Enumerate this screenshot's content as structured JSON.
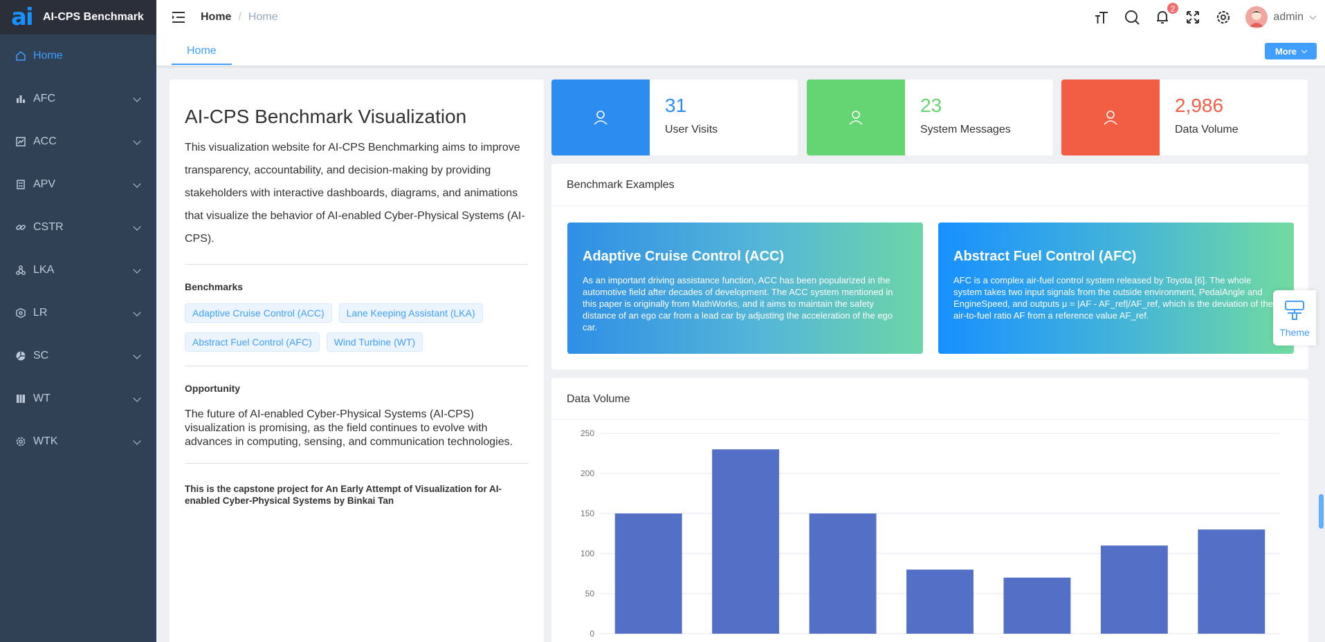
{
  "app": {
    "title": "AI-CPS Benchmark",
    "logo_text": "ai"
  },
  "sidebar": {
    "items": [
      {
        "label": "Home",
        "icon": "home-icon"
      },
      {
        "label": "AFC",
        "icon": "bar-chart-icon"
      },
      {
        "label": "ACC",
        "icon": "line-chart-icon"
      },
      {
        "label": "APV",
        "icon": "building-icon"
      },
      {
        "label": "CSTR",
        "icon": "link-icon"
      },
      {
        "label": "LKA",
        "icon": "network-icon"
      },
      {
        "label": "LR",
        "icon": "tag-icon"
      },
      {
        "label": "SC",
        "icon": "pie-icon"
      },
      {
        "label": "WT",
        "icon": "book-icon"
      },
      {
        "label": "WTK",
        "icon": "gear-icon"
      }
    ]
  },
  "header": {
    "breadcrumb": [
      "Home",
      "/",
      "Home"
    ],
    "notifications_count": "2",
    "user": "admin"
  },
  "tags_view": {
    "active_tag": "Home",
    "more_label": "More"
  },
  "intro": {
    "title": "AI-CPS Benchmark Visualization",
    "description": "This visualization website for AI-CPS Benchmarking aims to improve transparency, accountability, and decision-making by providing stakeholders with interactive dashboards, diagrams, and animations that visualize the behavior of AI-enabled Cyber-Physical Systems (AI-CPS).",
    "benchmarks_heading": "Benchmarks",
    "benchmarks": [
      "Adaptive Cruise Control (ACC)",
      "Lane Keeping Assistant (LKA)",
      "Abstract Fuel Control (AFC)",
      "Wind Turbine (WT)"
    ],
    "opportunity_heading": "Opportunity",
    "opportunity_text": "The future of AI-enabled Cyber-Physical Systems (AI-CPS) visualization is promising, as the field continues to evolve with advances in computing, sensing, and communication technologies.",
    "capstone": "This is the capstone project for An Early Attempt of Visualization for AI-enabled Cyber-Physical Systems by Binkai Tan"
  },
  "stats": [
    {
      "value": "31",
      "label": "User Visits",
      "color": "#2d8cf0"
    },
    {
      "value": "23",
      "label": "System Messages",
      "color": "#64d572"
    },
    {
      "value": "2,986",
      "label": "Data Volume",
      "color": "#f25e43"
    }
  ],
  "benchmark_examples": {
    "heading": "Benchmark Examples",
    "items": [
      {
        "title": "Adaptive Cruise Control (ACC)",
        "text": "As an important driving assistance function, ACC has been popularized in the automotive field after decades of development. The ACC system mentioned in this paper is originally from MathWorks, and it aims to maintain the safety distance of an ego car from a lead car by adjusting the acceleration of the ego car."
      },
      {
        "title": "Abstract Fuel Control (AFC)",
        "text": "AFC is a complex air-fuel control system released by Toyota [6]. The whole system takes two input signals from the outside environment, PedalAngle and EngineSpeed, and outputs μ = |AF - AF_ref|/AF_ref, which is the deviation of the air-to-fuel ratio AF from a reference value AF_ref."
      }
    ]
  },
  "theme_widget": {
    "label": "Theme"
  },
  "data_volume": {
    "heading": "Data Volume"
  },
  "chart_data": {
    "type": "bar",
    "title": "Data Volume",
    "categories": [
      "",
      "",
      "",
      "",
      "",
      "",
      ""
    ],
    "values": [
      150,
      230,
      150,
      80,
      70,
      110,
      130
    ],
    "yticks": [
      "250",
      "200",
      "150",
      "100",
      "50",
      "0"
    ],
    "ylim": [
      0,
      250
    ],
    "bar_color": "#5470c6"
  }
}
